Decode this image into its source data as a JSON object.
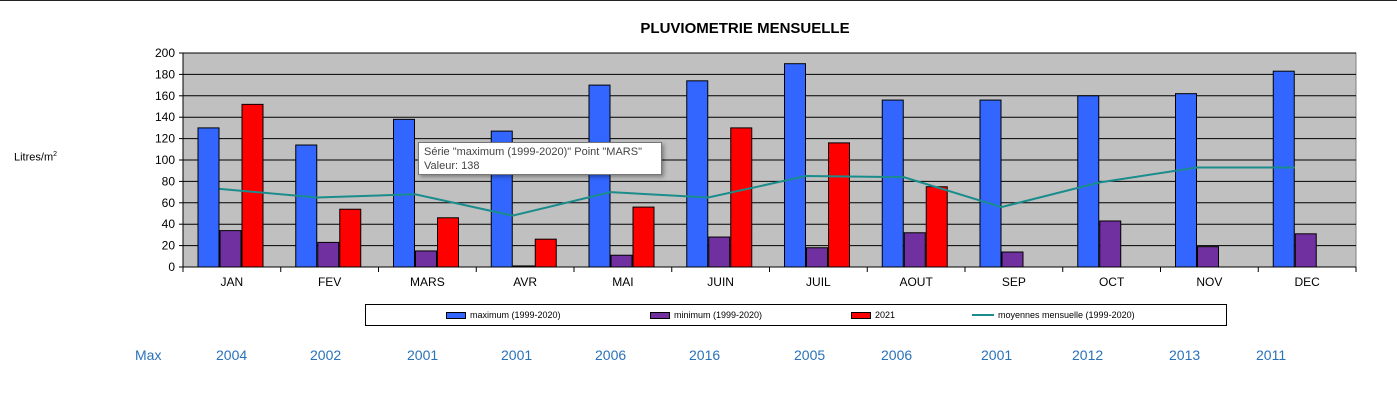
{
  "chart_data": {
    "type": "bar",
    "title": "PLUVIOMETRIE MENSUELLE",
    "ylabel": "Litres/m",
    "ylabel_sup": "2",
    "xlabel": "",
    "ylim": [
      0,
      200
    ],
    "ytick_step": 20,
    "yticks": [
      "0",
      "20",
      "40",
      "60",
      "80",
      "100",
      "120",
      "140",
      "160",
      "180",
      "200"
    ],
    "grid": true,
    "legend_position": "bottom",
    "categories": [
      "JAN",
      "FEV",
      "MARS",
      "AVR",
      "MAI",
      "JUIN",
      "JUIL",
      "AOUT",
      "SEP",
      "OCT",
      "NOV",
      "DEC"
    ],
    "series": [
      {
        "name": "maximum (1999-2020)",
        "type": "bar",
        "color": "#3366ff",
        "values": [
          130,
          114,
          138,
          127,
          170,
          174,
          190,
          156,
          156,
          160,
          162,
          183
        ]
      },
      {
        "name": "minimum (1999-2020)",
        "type": "bar",
        "color": "#7030a0",
        "values": [
          34,
          23,
          15,
          1,
          11,
          28,
          18,
          32,
          14,
          43,
          19,
          31
        ]
      },
      {
        "name": "2021",
        "type": "bar",
        "color": "#ff0000",
        "values": [
          152,
          54,
          46,
          26,
          56,
          130,
          116,
          75,
          null,
          null,
          null,
          null
        ]
      },
      {
        "name": "moyennes mensuelle (1999-2020)",
        "type": "line",
        "color": "#1b8c8c",
        "values": [
          73,
          65,
          68,
          48,
          70,
          65,
          85,
          84,
          56,
          79,
          93,
          93
        ]
      }
    ],
    "plot_background": "#c0c0c0"
  },
  "tooltip": {
    "line1": "Série \"maximum (1999-2020)\" Point \"MARS\"",
    "line2": "Valeur: 138"
  },
  "max_row": {
    "label": "Max",
    "years": [
      "2004",
      "2002",
      "2001",
      "2001",
      "2006",
      "2016",
      "2005",
      "2006",
      "2001",
      "2012",
      "2013",
      "2011"
    ]
  }
}
